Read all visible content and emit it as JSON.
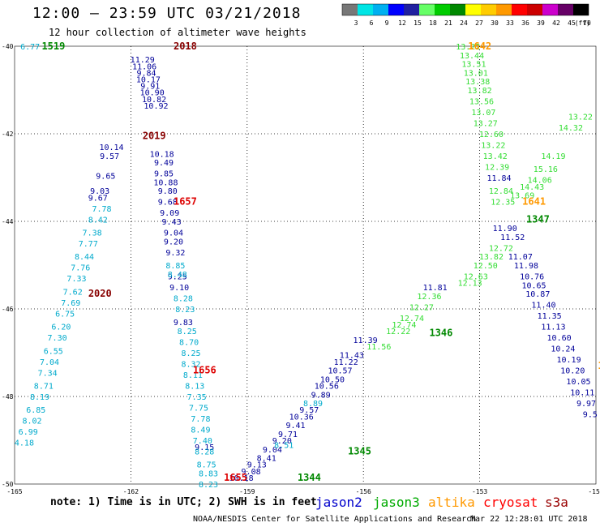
{
  "header": {
    "title": "12:00 – 23:59 UTC 03/21/2018",
    "subtitle": "12 hour collection of altimeter wave heights"
  },
  "colorbar": {
    "unit": "(ft)",
    "labels": [
      "3",
      "6",
      "9",
      "12",
      "15",
      "18",
      "21",
      "24",
      "27",
      "30",
      "33",
      "36",
      "39",
      "42",
      "45",
      "70"
    ],
    "colors": [
      "#777777",
      "#00e5e5",
      "#00b0f0",
      "#0000ff",
      "#2020a0",
      "#66ff66",
      "#00cc00",
      "#008800",
      "#ffff00",
      "#ffcc00",
      "#ff9900",
      "#ff0000",
      "#cc0000",
      "#cc00cc",
      "#660066",
      "#000000"
    ]
  },
  "footer": {
    "note": "note: 1) Time is in UTC; 2) SWH is in feet",
    "credit": "NOAA/NESDIS Center for Satellite Applications and Research",
    "timestamp": "Mar 22 12:28:01 UTC 2018"
  },
  "legend": [
    {
      "name": "jason2",
      "color": "#0000cc"
    },
    {
      "name": "jason3",
      "color": "#00aa00"
    },
    {
      "name": "altika",
      "color": "#ff9900"
    },
    {
      "name": "cryosat",
      "color": "#ff0000"
    },
    {
      "name": "s3a",
      "color": "#990000"
    }
  ],
  "chart_data": {
    "type": "scatter",
    "title": "12:00 – 23:59 UTC 03/21/2018",
    "xlim": [
      -165,
      -150
    ],
    "ylim": [
      -50,
      -40
    ],
    "x_ticks": [
      "-165",
      "-162",
      "-159",
      "-156",
      "-153",
      "-150"
    ],
    "y_ticks": [
      "-40",
      "-42",
      "-44",
      "-46",
      "-48",
      "-50"
    ],
    "grid": true,
    "pass_labels": [
      {
        "text": "1519",
        "x": -164.3,
        "y": -40.0,
        "color": "#008800"
      },
      {
        "text": "2018",
        "x": -160.9,
        "y": -40.0,
        "color": "#880000"
      },
      {
        "text": "2019",
        "x": -161.7,
        "y": -42.05,
        "color": "#880000"
      },
      {
        "text": "1657",
        "x": -160.9,
        "y": -43.55,
        "color": "#dd0000"
      },
      {
        "text": "2020",
        "x": -163.1,
        "y": -45.65,
        "color": "#880000"
      },
      {
        "text": "1656",
        "x": -160.4,
        "y": -47.4,
        "color": "#dd0000"
      },
      {
        "text": "1655",
        "x": -159.6,
        "y": -49.85,
        "color": "#dd0000"
      },
      {
        "text": "1344",
        "x": -157.7,
        "y": -49.85,
        "color": "#008800"
      },
      {
        "text": "1345",
        "x": -156.4,
        "y": -49.25,
        "color": "#008800"
      },
      {
        "text": "1346",
        "x": -154.3,
        "y": -46.55,
        "color": "#008800"
      },
      {
        "text": "1642",
        "x": -153.3,
        "y": -40.0,
        "color": "#ff9900"
      },
      {
        "text": "1641",
        "x": -151.9,
        "y": -43.55,
        "color": "#ff9900"
      },
      {
        "text": "1347",
        "x": -151.8,
        "y": -43.95,
        "color": "#008800"
      },
      {
        "text": "16",
        "x": -149.95,
        "y": -47.3,
        "color": "#ff9900"
      }
    ],
    "series": [
      {
        "name": "jason2",
        "color": "#000099",
        "points": [
          {
            "x": -161.7,
            "y": -40.3,
            "v": "11.29"
          },
          {
            "x": -161.65,
            "y": -40.45,
            "v": "11.06"
          },
          {
            "x": -161.6,
            "y": -40.6,
            "v": "9.84"
          },
          {
            "x": -161.55,
            "y": -40.75,
            "v": "10.17"
          },
          {
            "x": -161.5,
            "y": -40.9,
            "v": "9.91"
          },
          {
            "x": -161.45,
            "y": -41.05,
            "v": "10.90"
          },
          {
            "x": -161.4,
            "y": -41.2,
            "v": "10.82"
          },
          {
            "x": -161.35,
            "y": -41.35,
            "v": "10.92"
          },
          {
            "x": -162.5,
            "y": -42.3,
            "v": "10.14"
          },
          {
            "x": -162.55,
            "y": -42.5,
            "v": "9.57"
          },
          {
            "x": -162.65,
            "y": -42.95,
            "v": "9.65"
          },
          {
            "x": -162.8,
            "y": -43.3,
            "v": "9.03"
          },
          {
            "x": -162.85,
            "y": -43.45,
            "v": "9.67"
          },
          {
            "x": -161.2,
            "y": -42.45,
            "v": "10.18"
          },
          {
            "x": -161.15,
            "y": -42.65,
            "v": "9.49"
          },
          {
            "x": -161.15,
            "y": -42.9,
            "v": "9.85"
          },
          {
            "x": -161.1,
            "y": -43.1,
            "v": "10.88"
          },
          {
            "x": -161.05,
            "y": -43.3,
            "v": "9.80"
          },
          {
            "x": -161.05,
            "y": -43.55,
            "v": "9.68"
          },
          {
            "x": -161.0,
            "y": -43.8,
            "v": "9.09"
          },
          {
            "x": -160.95,
            "y": -44.0,
            "v": "9.43"
          },
          {
            "x": -160.9,
            "y": -44.25,
            "v": "9.04"
          },
          {
            "x": -160.9,
            "y": -44.45,
            "v": "9.20"
          },
          {
            "x": -160.85,
            "y": -44.7,
            "v": "9.32"
          },
          {
            "x": -160.8,
            "y": -45.25,
            "v": "9.25"
          },
          {
            "x": -160.75,
            "y": -45.5,
            "v": "9.10"
          },
          {
            "x": -160.65,
            "y": -46.3,
            "v": "9.83"
          },
          {
            "x": -160.1,
            "y": -49.15,
            "v": "9.15"
          },
          {
            "x": -159.15,
            "y": -49.85,
            "v": "10.18"
          },
          {
            "x": -158.9,
            "y": -49.7,
            "v": "9.08"
          },
          {
            "x": -158.75,
            "y": -49.55,
            "v": "9.13"
          },
          {
            "x": -158.5,
            "y": -49.4,
            "v": "8.41"
          },
          {
            "x": -158.35,
            "y": -49.2,
            "v": "9.04"
          },
          {
            "x": -158.1,
            "y": -49.0,
            "v": "9.20"
          },
          {
            "x": -157.95,
            "y": -48.85,
            "v": "9.71"
          },
          {
            "x": -157.75,
            "y": -48.65,
            "v": "9.41"
          },
          {
            "x": -157.6,
            "y": -48.45,
            "v": "10.36"
          },
          {
            "x": -157.4,
            "y": -48.3,
            "v": "9.57"
          },
          {
            "x": -157.1,
            "y": -47.95,
            "v": "9.89"
          },
          {
            "x": -156.95,
            "y": -47.75,
            "v": "10.56"
          },
          {
            "x": -156.8,
            "y": -47.6,
            "v": "10.50"
          },
          {
            "x": -156.6,
            "y": -47.4,
            "v": "10.57"
          },
          {
            "x": -156.45,
            "y": -47.2,
            "v": "11.22"
          },
          {
            "x": -156.3,
            "y": -47.05,
            "v": "11.43"
          },
          {
            "x": -155.95,
            "y": -46.7,
            "v": "11.39"
          },
          {
            "x": -154.15,
            "y": -45.5,
            "v": "11.81"
          },
          {
            "x": -152.5,
            "y": -43.0,
            "v": "11.84"
          },
          {
            "x": -152.35,
            "y": -44.15,
            "v": "11.90"
          },
          {
            "x": -152.15,
            "y": -44.35,
            "v": "11.52"
          },
          {
            "x": -151.95,
            "y": -44.8,
            "v": "11.07"
          },
          {
            "x": -151.8,
            "y": -45.0,
            "v": "11.98"
          },
          {
            "x": -151.65,
            "y": -45.25,
            "v": "10.76"
          },
          {
            "x": -151.6,
            "y": -45.45,
            "v": "10.65"
          },
          {
            "x": -151.5,
            "y": -45.65,
            "v": "10.87"
          },
          {
            "x": -151.35,
            "y": -45.9,
            "v": "11.40"
          },
          {
            "x": -151.2,
            "y": -46.15,
            "v": "11.35"
          },
          {
            "x": -151.1,
            "y": -46.4,
            "v": "11.13"
          },
          {
            "x": -150.95,
            "y": -46.65,
            "v": "10.60"
          },
          {
            "x": -150.85,
            "y": -46.9,
            "v": "10.24"
          },
          {
            "x": -150.7,
            "y": -47.15,
            "v": "10.19"
          },
          {
            "x": -150.6,
            "y": -47.4,
            "v": "10.20"
          },
          {
            "x": -150.45,
            "y": -47.65,
            "v": "10.05"
          },
          {
            "x": -150.35,
            "y": -47.9,
            "v": "10.11"
          },
          {
            "x": -150.25,
            "y": -48.15,
            "v": "9.97"
          },
          {
            "x": -150.15,
            "y": -48.4,
            "v": "9.5"
          }
        ]
      },
      {
        "name": "jason3",
        "color": "#33dd33",
        "points": [
          {
            "x": -153.3,
            "y": -40.0,
            "v": "13.22"
          },
          {
            "x": -153.2,
            "y": -40.2,
            "v": "13.44"
          },
          {
            "x": -153.15,
            "y": -40.4,
            "v": "13.51"
          },
          {
            "x": -153.1,
            "y": -40.6,
            "v": "13.01"
          },
          {
            "x": -153.05,
            "y": -40.8,
            "v": "13.38"
          },
          {
            "x": -153.0,
            "y": -41.0,
            "v": "13.82"
          },
          {
            "x": -152.95,
            "y": -41.25,
            "v": "13.56"
          },
          {
            "x": -152.9,
            "y": -41.5,
            "v": "13.07"
          },
          {
            "x": -152.85,
            "y": -41.75,
            "v": "13.27"
          },
          {
            "x": -152.7,
            "y": -42.0,
            "v": "12.60"
          },
          {
            "x": -152.65,
            "y": -42.25,
            "v": "13.22"
          },
          {
            "x": -152.6,
            "y": -42.5,
            "v": "13.42"
          },
          {
            "x": -152.55,
            "y": -42.75,
            "v": "12.39"
          },
          {
            "x": -152.45,
            "y": -43.3,
            "v": "12.84"
          },
          {
            "x": -152.4,
            "y": -43.55,
            "v": "12.35"
          },
          {
            "x": -150.4,
            "y": -41.6,
            "v": "13.22"
          },
          {
            "x": -150.65,
            "y": -41.85,
            "v": "14.32"
          },
          {
            "x": -151.1,
            "y": -42.5,
            "v": "14.19"
          },
          {
            "x": -151.3,
            "y": -42.8,
            "v": "15.16"
          },
          {
            "x": -151.45,
            "y": -43.05,
            "v": "14.06"
          },
          {
            "x": -151.65,
            "y": -43.2,
            "v": "14.43"
          },
          {
            "x": -151.9,
            "y": -43.4,
            "v": "13.69"
          },
          {
            "x": -152.45,
            "y": -44.6,
            "v": "12.72"
          },
          {
            "x": -152.7,
            "y": -44.8,
            "v": "13.82"
          },
          {
            "x": -152.85,
            "y": -45.0,
            "v": "12.50"
          },
          {
            "x": -153.1,
            "y": -45.25,
            "v": "12.63"
          },
          {
            "x": -153.25,
            "y": -45.4,
            "v": "12.13"
          },
          {
            "x": -154.3,
            "y": -45.7,
            "v": "12.36"
          },
          {
            "x": -154.5,
            "y": -45.95,
            "v": "12.27"
          },
          {
            "x": -154.75,
            "y": -46.2,
            "v": "12.74"
          },
          {
            "x": -154.95,
            "y": -46.35,
            "v": "12.74"
          },
          {
            "x": -155.1,
            "y": -46.5,
            "v": "12.22"
          },
          {
            "x": -155.6,
            "y": -46.85,
            "v": "11.56"
          }
        ]
      },
      {
        "name": "s3a_2019",
        "color": "#00aacc",
        "points": [
          {
            "x": -164.6,
            "y": -40.0,
            "v": "6.77"
          },
          {
            "x": -162.75,
            "y": -43.7,
            "v": "7.78"
          },
          {
            "x": -162.85,
            "y": -43.95,
            "v": "8.42"
          },
          {
            "x": -163.0,
            "y": -44.25,
            "v": "7.38"
          },
          {
            "x": -163.1,
            "y": -44.5,
            "v": "7.77"
          },
          {
            "x": -163.2,
            "y": -44.8,
            "v": "8.44"
          },
          {
            "x": -163.3,
            "y": -45.05,
            "v": "7.76"
          },
          {
            "x": -163.4,
            "y": -45.3,
            "v": "7.33"
          },
          {
            "x": -163.5,
            "y": -45.6,
            "v": "7.62"
          },
          {
            "x": -163.55,
            "y": -45.85,
            "v": "7.69"
          },
          {
            "x": -163.7,
            "y": -46.1,
            "v": "6.75"
          },
          {
            "x": -163.8,
            "y": -46.4,
            "v": "6.20"
          },
          {
            "x": -163.9,
            "y": -46.65,
            "v": "7.30"
          },
          {
            "x": -164.0,
            "y": -46.95,
            "v": "6.55"
          },
          {
            "x": -164.1,
            "y": -47.2,
            "v": "7.04"
          },
          {
            "x": -164.15,
            "y": -47.45,
            "v": "7.34"
          },
          {
            "x": -164.25,
            "y": -47.75,
            "v": "8.71"
          },
          {
            "x": -164.35,
            "y": -48.0,
            "v": "8.19"
          },
          {
            "x": -164.45,
            "y": -48.3,
            "v": "6.85"
          },
          {
            "x": -164.55,
            "y": -48.55,
            "v": "8.02"
          },
          {
            "x": -164.65,
            "y": -48.8,
            "v": "6.99"
          },
          {
            "x": -164.75,
            "y": -49.05,
            "v": "4.18"
          },
          {
            "x": -160.85,
            "y": -45.0,
            "v": "8.85"
          },
          {
            "x": -160.8,
            "y": -45.2,
            "v": "8.48"
          },
          {
            "x": -160.65,
            "y": -45.75,
            "v": "8.28"
          },
          {
            "x": -160.6,
            "y": -46.0,
            "v": "8.23"
          },
          {
            "x": -160.55,
            "y": -46.5,
            "v": "8.25"
          },
          {
            "x": -160.5,
            "y": -46.75,
            "v": "8.70"
          },
          {
            "x": -160.45,
            "y": -47.0,
            "v": "8.25"
          },
          {
            "x": -160.45,
            "y": -47.25,
            "v": "8.32"
          },
          {
            "x": -160.4,
            "y": -47.5,
            "v": "8.11"
          },
          {
            "x": -160.35,
            "y": -47.75,
            "v": "8.13"
          },
          {
            "x": -160.3,
            "y": -48.0,
            "v": "7.35"
          },
          {
            "x": -160.25,
            "y": -48.25,
            "v": "7.75"
          },
          {
            "x": -160.2,
            "y": -48.5,
            "v": "7.78"
          },
          {
            "x": -160.2,
            "y": -48.75,
            "v": "8.49"
          },
          {
            "x": -160.15,
            "y": -49.0,
            "v": "7.40"
          },
          {
            "x": -160.1,
            "y": -49.25,
            "v": "8.28"
          },
          {
            "x": -160.05,
            "y": -49.55,
            "v": "8.75"
          },
          {
            "x": -160.0,
            "y": -49.75,
            "v": "8.83"
          },
          {
            "x": -160.0,
            "y": -50.0,
            "v": "8.23"
          },
          {
            "x": -157.3,
            "y": -48.15,
            "v": "8.89"
          },
          {
            "x": -158.05,
            "y": -49.1,
            "v": "8.51"
          }
        ]
      }
    ]
  }
}
